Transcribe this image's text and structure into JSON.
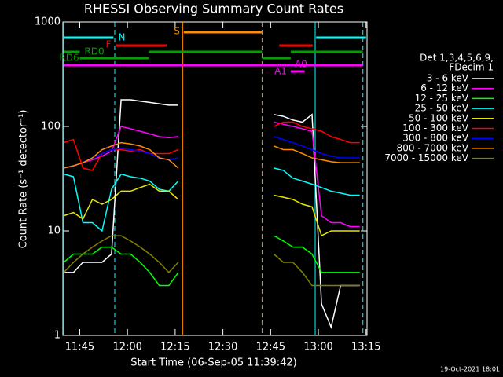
{
  "chart_data": {
    "type": "line",
    "title": "RHESSI Observing Summary Count Rates",
    "x_label": "Start Time (06-Sep-05 11:39:42)",
    "y_label": "Count Rate (s⁻¹ detector⁻¹)",
    "legend_header": [
      "Det 1,3,4,5,6,9,",
      "FDecim 1"
    ],
    "footer": "19-Oct-2021 18:01",
    "log_y": true,
    "xlim": [
      699.7,
      795.3
    ],
    "ylim": [
      1,
      1000
    ],
    "xticks": [
      {
        "value": 705,
        "label": "11:45"
      },
      {
        "value": 720,
        "label": "12:00"
      },
      {
        "value": 735,
        "label": "12:15"
      },
      {
        "value": 750,
        "label": "12:30"
      },
      {
        "value": 765,
        "label": "12:45"
      },
      {
        "value": 780,
        "label": "13:00"
      },
      {
        "value": 795,
        "label": "13:15"
      }
    ],
    "yticks": [
      1,
      10,
      100,
      1000
    ],
    "x": [
      700,
      703,
      706,
      709,
      712,
      715,
      718,
      721,
      724,
      727,
      730,
      733,
      736,
      739,
      742,
      745,
      748,
      751,
      754,
      757,
      760,
      763,
      766,
      769,
      772,
      775,
      778,
      781,
      784,
      787,
      790,
      793
    ],
    "series": [
      {
        "name": "3 - 6 keV",
        "color": "#ffffff",
        "values": [
          4,
          4,
          5,
          5,
          5,
          6,
          180,
          180,
          175,
          170,
          165,
          160,
          160,
          null,
          null,
          null,
          null,
          null,
          null,
          null,
          null,
          null,
          130,
          125,
          115,
          110,
          130,
          2,
          1.2,
          3,
          3,
          3
        ]
      },
      {
        "name": "6 - 12 keV",
        "color": "#ff00ff",
        "values": [
          40,
          42,
          45,
          48,
          52,
          58,
          100,
          95,
          90,
          85,
          80,
          78,
          80,
          null,
          null,
          null,
          null,
          null,
          null,
          null,
          null,
          null,
          110,
          105,
          100,
          95,
          90,
          14,
          12,
          12,
          11,
          11
        ]
      },
      {
        "name": "12 - 25 keV",
        "color": "#00ff00",
        "values": [
          5,
          6,
          6,
          6,
          7,
          7,
          6,
          6,
          5,
          4,
          3,
          3,
          4,
          null,
          null,
          null,
          null,
          null,
          null,
          null,
          null,
          null,
          9,
          8,
          7,
          7,
          6,
          4,
          4,
          4,
          4,
          4
        ]
      },
      {
        "name": "25 - 50 keV",
        "color": "#00ffff",
        "values": [
          35,
          33,
          12,
          12,
          10,
          25,
          35,
          33,
          32,
          30,
          25,
          24,
          30,
          null,
          null,
          null,
          null,
          null,
          null,
          null,
          null,
          null,
          40,
          38,
          32,
          30,
          28,
          26,
          24,
          23,
          22,
          22
        ]
      },
      {
        "name": "50 - 100 keV",
        "color": "#e6e600",
        "values": [
          14,
          15,
          13,
          20,
          18,
          20,
          24,
          24,
          26,
          28,
          24,
          24,
          20,
          null,
          null,
          null,
          null,
          null,
          null,
          null,
          null,
          null,
          22,
          21,
          20,
          18,
          17,
          9,
          10,
          10,
          10,
          10
        ]
      },
      {
        "name": "100 - 300 keV",
        "color": "#ff0000",
        "values": [
          70,
          75,
          40,
          38,
          55,
          60,
          60,
          58,
          60,
          55,
          55,
          55,
          60,
          null,
          null,
          null,
          null,
          null,
          null,
          null,
          null,
          null,
          100,
          110,
          110,
          100,
          95,
          90,
          80,
          75,
          70,
          70
        ]
      },
      {
        "name": "300 - 800 keV",
        "color": "#0000ff",
        "values": [
          40,
          42,
          45,
          50,
          55,
          60,
          62,
          60,
          58,
          55,
          50,
          48,
          50,
          null,
          null,
          null,
          null,
          null,
          null,
          null,
          null,
          null,
          80,
          75,
          70,
          65,
          60,
          55,
          52,
          50,
          50,
          50
        ]
      },
      {
        "name": "800 - 7000 keV",
        "color": "#ff8c00",
        "values": [
          40,
          42,
          45,
          50,
          60,
          65,
          70,
          68,
          65,
          60,
          50,
          48,
          40,
          null,
          null,
          null,
          null,
          null,
          null,
          null,
          null,
          null,
          65,
          60,
          60,
          55,
          50,
          48,
          46,
          45,
          45,
          45
        ]
      },
      {
        "name": "7000 - 15000 keV",
        "color": "#808000",
        "values": [
          4,
          5,
          6,
          7,
          8,
          9,
          9,
          8,
          7,
          6,
          5,
          4,
          5,
          null,
          null,
          null,
          null,
          null,
          null,
          null,
          null,
          null,
          6,
          5,
          5,
          4,
          3,
          3,
          3,
          3,
          3,
          3
        ]
      }
    ],
    "state_bars": [
      {
        "label": "N",
        "color": "#00ffff",
        "segments": [
          [
            700.1,
            715.6
          ],
          [
            779.3,
            795
          ]
        ]
      },
      {
        "label": "F",
        "color": "#ff0000",
        "segments": [
          [
            716.3,
            732.3
          ],
          [
            767.7,
            778.2
          ]
        ]
      },
      {
        "label": "S",
        "color": "#ff8c00",
        "segments": [
          [
            737.7,
            762.3
          ]
        ]
      },
      {
        "label": "RD0",
        "color": "#00a000",
        "segments": [
          [
            700,
            705
          ],
          [
            726.6,
            762.3
          ],
          [
            771.3,
            794
          ]
        ]
      },
      {
        "label": "RD6",
        "color": "#00a000",
        "segments": [
          [
            705,
            726.6
          ],
          [
            762.3,
            771.3
          ]
        ]
      },
      {
        "label": "A1",
        "color": "#ff00ff",
        "segments": [
          [
            700,
            794
          ]
        ]
      },
      {
        "label": "A0",
        "color": "#ff00ff",
        "segments": [
          [
            771.3,
            775.7
          ]
        ]
      }
    ],
    "markers": [
      {
        "time": 700,
        "color": "#00ffff",
        "dashed": false
      },
      {
        "time": 716,
        "color": "#00ffff",
        "dashed": true
      },
      {
        "time": 737.4,
        "color": "#ff8c00",
        "dashed": false
      },
      {
        "time": 762.3,
        "color": "#ff8c00",
        "dashed": true
      },
      {
        "time": 779,
        "color": "#00ffff",
        "dashed": false
      },
      {
        "time": 794,
        "color": "#00ffff",
        "dashed": true
      }
    ]
  }
}
